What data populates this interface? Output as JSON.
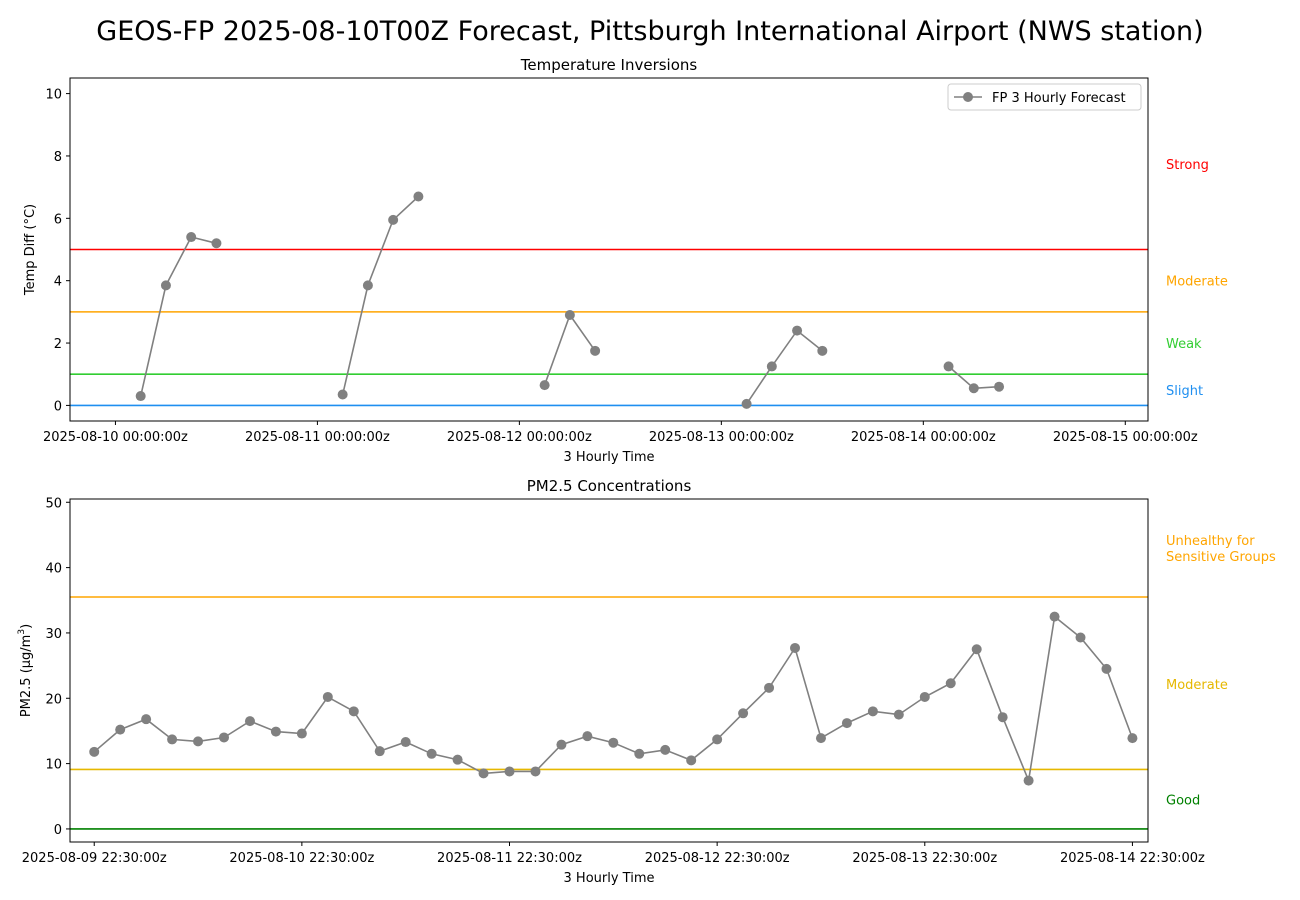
{
  "title": "GEOS-FP 2025-08-10T00Z Forecast, Pittsburgh International Airport (NWS station)",
  "chart_data": [
    {
      "type": "line",
      "title": "Temperature Inversions",
      "xlabel": "3 Hourly Time",
      "ylabel": "Temp Diff (°C)",
      "xlim": [
        "2025-08-09T18:36:00Z",
        "2025-08-15T02:42:00Z"
      ],
      "ylim": [
        -0.5,
        10.5
      ],
      "yticks": [
        0,
        2,
        4,
        6,
        8,
        10
      ],
      "xticks": [
        {
          "t": "2025-08-10T00:00:00Z",
          "label": "2025-08-10 00:00:00z"
        },
        {
          "t": "2025-08-11T00:00:00Z",
          "label": "2025-08-11 00:00:00z"
        },
        {
          "t": "2025-08-12T00:00:00Z",
          "label": "2025-08-12 00:00:00z"
        },
        {
          "t": "2025-08-13T00:00:00Z",
          "label": "2025-08-13 00:00:00z"
        },
        {
          "t": "2025-08-14T00:00:00Z",
          "label": "2025-08-14 00:00:00z"
        },
        {
          "t": "2025-08-15T00:00:00Z",
          "label": "2025-08-15 00:00:00z"
        }
      ],
      "legend": {
        "position": "top-right",
        "entries": [
          "FP 3 Hourly Forecast"
        ]
      },
      "series": [
        {
          "name": "FP 3 Hourly Forecast",
          "color": "#808080",
          "segments": [
            [
              {
                "t": "2025-08-10T03:00:00Z",
                "y": 0.3
              },
              {
                "t": "2025-08-10T06:00:00Z",
                "y": 3.85
              },
              {
                "t": "2025-08-10T09:00:00Z",
                "y": 5.4
              },
              {
                "t": "2025-08-10T12:00:00Z",
                "y": 5.2
              }
            ],
            [
              {
                "t": "2025-08-11T03:00:00Z",
                "y": 0.35
              },
              {
                "t": "2025-08-11T06:00:00Z",
                "y": 3.85
              },
              {
                "t": "2025-08-11T09:00:00Z",
                "y": 5.95
              },
              {
                "t": "2025-08-11T12:00:00Z",
                "y": 6.7
              }
            ],
            [
              {
                "t": "2025-08-12T03:00:00Z",
                "y": 0.65
              },
              {
                "t": "2025-08-12T06:00:00Z",
                "y": 2.9
              },
              {
                "t": "2025-08-12T09:00:00Z",
                "y": 1.75
              }
            ],
            [
              {
                "t": "2025-08-13T03:00:00Z",
                "y": 0.05
              },
              {
                "t": "2025-08-13T06:00:00Z",
                "y": 1.25
              },
              {
                "t": "2025-08-13T09:00:00Z",
                "y": 2.4
              },
              {
                "t": "2025-08-13T12:00:00Z",
                "y": 1.75
              }
            ],
            [
              {
                "t": "2025-08-14T03:00:00Z",
                "y": 1.25
              },
              {
                "t": "2025-08-14T06:00:00Z",
                "y": 0.55
              },
              {
                "t": "2025-08-14T09:00:00Z",
                "y": 0.6
              }
            ]
          ]
        }
      ],
      "thresholds": [
        {
          "value": 0,
          "color": "#1f8ff0",
          "label": "Slight",
          "label_y": 0.5
        },
        {
          "value": 1,
          "color": "#32cd32",
          "label": "Weak",
          "label_y": 2.0
        },
        {
          "value": 3,
          "color": "#ffa500",
          "label": "Moderate",
          "label_y": 4.0
        },
        {
          "value": 5,
          "color": "#ff0000",
          "label": "Strong",
          "label_y": 7.75
        }
      ]
    },
    {
      "type": "line",
      "title": "PM2.5 Concentrations",
      "xlabel": "3 Hourly Time",
      "ylabel": "PM2.5 (µg/m³)",
      "ylabel_main": "PM2.5 (µg/m",
      "ylabel_sup": "3",
      "ylabel_end": ")",
      "xlim": [
        "2025-08-09T19:42:00Z",
        "2025-08-15T00:18:00Z"
      ],
      "ylim": [
        -2,
        50.5
      ],
      "yticks": [
        0,
        10,
        20,
        30,
        40,
        50
      ],
      "xticks": [
        {
          "t": "2025-08-09T22:30:00Z",
          "label": "2025-08-09 22:30:00z"
        },
        {
          "t": "2025-08-10T22:30:00Z",
          "label": "2025-08-10 22:30:00z"
        },
        {
          "t": "2025-08-11T22:30:00Z",
          "label": "2025-08-11 22:30:00z"
        },
        {
          "t": "2025-08-12T22:30:00Z",
          "label": "2025-08-12 22:30:00z"
        },
        {
          "t": "2025-08-13T22:30:00Z",
          "label": "2025-08-13 22:30:00z"
        },
        {
          "t": "2025-08-14T22:30:00Z",
          "label": "2025-08-14 22:30:00z"
        }
      ],
      "series": [
        {
          "name": "",
          "color": "#808080",
          "start": "2025-08-09T22:30:00Z",
          "step_hours": 3,
          "values": [
            11.8,
            15.2,
            16.8,
            13.7,
            13.4,
            14.0,
            16.5,
            14.9,
            14.6,
            20.2,
            18.0,
            11.9,
            13.3,
            11.5,
            10.6,
            8.5,
            8.8,
            8.8,
            12.9,
            14.2,
            13.2,
            11.5,
            12.1,
            10.5,
            13.7,
            17.7,
            21.6,
            27.7,
            13.9,
            16.2,
            18.0,
            17.5,
            20.2,
            22.3,
            27.5,
            17.1,
            7.4,
            32.5,
            29.3,
            24.5,
            13.9
          ]
        }
      ],
      "thresholds": [
        {
          "value": 0,
          "color": "#008000",
          "label": "Good",
          "label_y": 4.5
        },
        {
          "value": 9.1,
          "color": "#e6b800",
          "label": "Moderate",
          "label_y": 22.2
        },
        {
          "value": 35.5,
          "color": "#ffa500",
          "label": "Unhealthy for\nSensitive Groups",
          "label_y": 43.0
        }
      ]
    }
  ]
}
